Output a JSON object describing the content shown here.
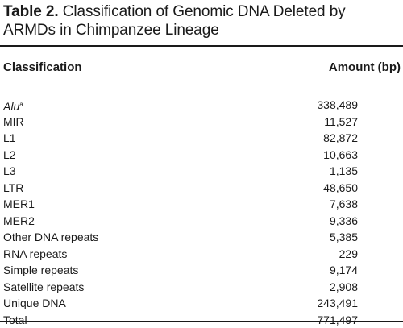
{
  "caption": {
    "label": "Table 2.",
    "text": "Classification of Genomic DNA Deleted by ARMDs in Chimpanzee Lineage"
  },
  "table": {
    "headers": {
      "classification": "Classification",
      "amount": "Amount (bp)"
    },
    "rows": [
      {
        "classification": "Alu",
        "footnote": "a",
        "italic": true,
        "amount": "338,489"
      },
      {
        "classification": "MIR",
        "amount": "11,527"
      },
      {
        "classification": "L1",
        "amount": "82,872"
      },
      {
        "classification": "L2",
        "amount": "10,663"
      },
      {
        "classification": "L3",
        "amount": "1,135"
      },
      {
        "classification": "LTR",
        "amount": "48,650"
      },
      {
        "classification": "MER1",
        "amount": "7,638"
      },
      {
        "classification": "MER2",
        "amount": "9,336"
      },
      {
        "classification": "Other DNA repeats",
        "amount": "5,385"
      },
      {
        "classification": "RNA repeats",
        "amount": "229"
      },
      {
        "classification": "Simple repeats",
        "amount": "9,174"
      },
      {
        "classification": "Satellite repeats",
        "amount": "2,908"
      },
      {
        "classification": "Unique DNA",
        "amount": "243,491"
      },
      {
        "classification": "Total",
        "amount": "771,497"
      }
    ]
  }
}
